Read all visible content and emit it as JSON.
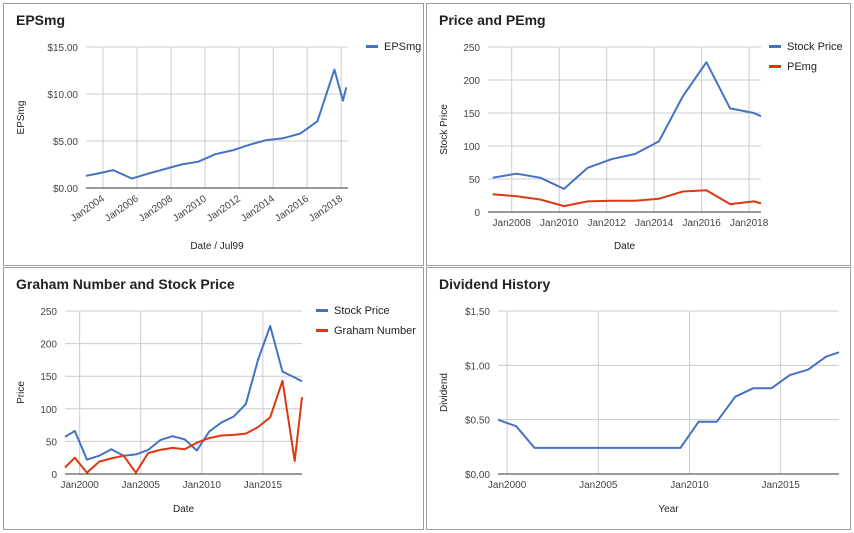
{
  "colors": {
    "blue": "#4472c4",
    "red": "#dc3912"
  },
  "chart_data": [
    {
      "type": "line",
      "title": "EPSmg",
      "xlabel": "Date / Jul99",
      "ylabel": "EPSmg",
      "ylim": [
        0,
        15
      ],
      "xlim": [
        2003,
        2018.4
      ],
      "ytick_labels": [
        "$0.00",
        "$5.00",
        "$10.00",
        "$15.00"
      ],
      "yticks": [
        0,
        5,
        10,
        15
      ],
      "xtick_labels": [
        "Jan2004",
        "Jan2006",
        "Jan2008",
        "Jan2010",
        "Jan2012",
        "Jan2014",
        "Jan2016",
        "Jan2018"
      ],
      "xticks": [
        2004,
        2006,
        2008,
        2010,
        2012,
        2014,
        2016,
        2018
      ],
      "grid": true,
      "legend": "top-right",
      "series": [
        {
          "name": "EPSmg",
          "color": "#4472c4",
          "x": [
            2003.0,
            2003.6,
            2004.6,
            2005.7,
            2006.6,
            2007.6,
            2008.6,
            2009.6,
            2010.6,
            2011.6,
            2012.6,
            2013.6,
            2014.6,
            2015.6,
            2016.6,
            2017.6,
            2018.1,
            2018.3
          ],
          "y": [
            1.3,
            1.5,
            1.9,
            1.0,
            1.5,
            2.0,
            2.5,
            2.8,
            3.6,
            4.0,
            4.6,
            5.1,
            5.3,
            5.8,
            7.1,
            12.6,
            9.3,
            10.7
          ]
        }
      ]
    },
    {
      "type": "line",
      "title": "Price and PEmg",
      "xlabel": "Date",
      "ylabel": "Stock Price",
      "ylim": [
        0,
        250
      ],
      "xlim": [
        2007,
        2018.5
      ],
      "ytick_labels": [
        "0",
        "50",
        "100",
        "150",
        "200",
        "250"
      ],
      "yticks": [
        0,
        50,
        100,
        150,
        200,
        250
      ],
      "xtick_labels": [
        "Jan2008",
        "Jan2010",
        "Jan2012",
        "Jan2014",
        "Jan2016",
        "Jan2018"
      ],
      "xticks": [
        2008,
        2010,
        2012,
        2014,
        2016,
        2018
      ],
      "grid": true,
      "legend": "top-right",
      "series": [
        {
          "name": "Stock Price",
          "color": "#4472c4",
          "x": [
            2007.2,
            2008.2,
            2009.2,
            2010.2,
            2011.2,
            2012.2,
            2013.2,
            2014.2,
            2015.2,
            2016.2,
            2017.2,
            2018.2,
            2018.5
          ],
          "y": [
            52,
            58,
            52,
            35,
            67,
            80,
            88,
            107,
            175,
            227,
            157,
            150,
            145
          ]
        },
        {
          "name": "PEmg",
          "color": "#dc3912",
          "x": [
            2007.2,
            2008.2,
            2009.2,
            2010.2,
            2011.2,
            2012.2,
            2013.2,
            2014.2,
            2015.2,
            2016.2,
            2017.2,
            2018.2,
            2018.5
          ],
          "y": [
            27,
            24,
            19,
            9,
            16,
            17,
            17,
            20,
            31,
            33,
            12,
            16,
            13
          ]
        }
      ]
    },
    {
      "type": "line",
      "title": "Graham Number and Stock Price",
      "xlabel": "Date",
      "ylabel": "Price",
      "ylim": [
        0,
        250
      ],
      "xlim": [
        1998.8,
        2018.2
      ],
      "ytick_labels": [
        "0",
        "50",
        "100",
        "150",
        "200",
        "250"
      ],
      "yticks": [
        0,
        50,
        100,
        150,
        200,
        250
      ],
      "xtick_labels": [
        "Jan2000",
        "Jan2005",
        "Jan2010",
        "Jan2015"
      ],
      "xticks": [
        2000,
        2005,
        2010,
        2015
      ],
      "grid": true,
      "legend": "top-right",
      "series": [
        {
          "name": "Stock Price",
          "color": "#4472c4",
          "x": [
            1998.8,
            1999.6,
            2000.6,
            2001.6,
            2002.6,
            2003.6,
            2004.6,
            2005.6,
            2006.6,
            2007.6,
            2008.6,
            2009.6,
            2010.6,
            2011.6,
            2012.6,
            2013.6,
            2014.6,
            2015.6,
            2016.6,
            2017.6,
            2018.2
          ],
          "y": [
            57,
            66,
            22,
            28,
            38,
            28,
            30,
            37,
            52,
            58,
            53,
            36,
            65,
            79,
            88,
            107,
            175,
            227,
            157,
            148,
            142
          ]
        },
        {
          "name": "Graham Number",
          "color": "#dc3912",
          "x": [
            1998.8,
            1999.6,
            2000.6,
            2001.6,
            2002.6,
            2003.6,
            2004.6,
            2005.6,
            2006.6,
            2007.6,
            2008.6,
            2009.6,
            2010.6,
            2011.6,
            2012.6,
            2013.6,
            2014.6,
            2015.6,
            2016.6,
            2017.6,
            2018.2
          ],
          "y": [
            10,
            25,
            2,
            19,
            24,
            28,
            2,
            32,
            37,
            40,
            38,
            48,
            55,
            59,
            60,
            62,
            72,
            87,
            143,
            20,
            118
          ]
        }
      ]
    },
    {
      "type": "line",
      "title": "Dividend History",
      "xlabel": "Year",
      "ylabel": "Dividend",
      "ylim": [
        0,
        1.5
      ],
      "xlim": [
        1999.5,
        2018.2
      ],
      "ytick_labels": [
        "$0.00",
        "$0.50",
        "$1.00",
        "$1.50"
      ],
      "yticks": [
        0,
        0.5,
        1.0,
        1.5
      ],
      "xtick_labels": [
        "Jan2000",
        "Jan2005",
        "Jan2010",
        "Jan2015"
      ],
      "xticks": [
        2000,
        2005,
        2010,
        2015
      ],
      "grid": true,
      "legend": "none",
      "series": [
        {
          "name": "",
          "color": "#4472c4",
          "x": [
            1999.5,
            2000.5,
            2001.5,
            2002.5,
            2003.5,
            2004.5,
            2005.5,
            2006.5,
            2007.5,
            2008.5,
            2009.5,
            2010.5,
            2011.5,
            2012.5,
            2013.5,
            2014.5,
            2015.5,
            2016.5,
            2017.5,
            2018.2
          ],
          "y": [
            0.5,
            0.44,
            0.24,
            0.24,
            0.24,
            0.24,
            0.24,
            0.24,
            0.24,
            0.24,
            0.24,
            0.48,
            0.48,
            0.71,
            0.79,
            0.79,
            0.91,
            0.96,
            1.08,
            1.12
          ]
        }
      ]
    }
  ]
}
